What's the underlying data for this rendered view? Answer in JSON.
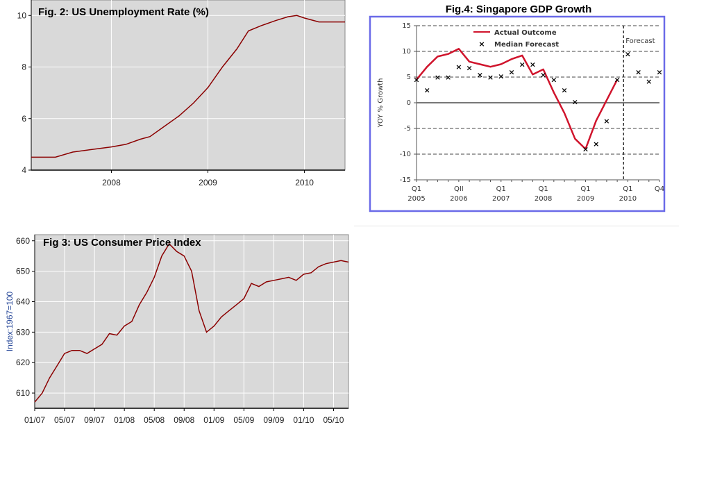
{
  "chart_data": [
    {
      "id": "unemployment",
      "type": "line",
      "title": "Fig. 2: US Unemployment Rate (%)",
      "xlabel": "",
      "ylabel": "",
      "x_tick_labels": [
        "2008",
        "2009",
        "2010"
      ],
      "y_tick_labels": [
        "4",
        "6",
        "8",
        "10"
      ],
      "xlim": [
        2007.17,
        2010.42
      ],
      "ylim": [
        4,
        10.6
      ],
      "grid": true,
      "colors": {
        "line": "#8b0000",
        "background": "#d9d9d9",
        "grid": "#ffffff"
      },
      "series": [
        {
          "x": [
            2007.17,
            2007.42,
            2007.6,
            2007.8,
            2008.0,
            2008.15,
            2008.3,
            2008.4,
            2008.55,
            2008.7,
            2008.85,
            2009.0,
            2009.15,
            2009.3,
            2009.42,
            2009.55,
            2009.7,
            2009.83,
            2009.92,
            2010.0,
            2010.15,
            2010.42
          ],
          "y": [
            4.5,
            4.5,
            4.7,
            4.8,
            4.9,
            5.0,
            5.2,
            5.3,
            5.7,
            6.1,
            6.6,
            7.2,
            8.0,
            8.7,
            9.4,
            9.6,
            9.8,
            9.95,
            10.0,
            9.9,
            9.75,
            9.75
          ]
        }
      ]
    },
    {
      "id": "cpi",
      "type": "line",
      "title": "Fig 3: US Consumer Price Index",
      "xlabel": "",
      "ylabel": "Index:1967=100",
      "x_categories": [
        "01/07",
        "05/07",
        "09/07",
        "01/08",
        "05/08",
        "09/08",
        "01/09",
        "05/09",
        "09/09",
        "01/10",
        "05/10"
      ],
      "y_tick_labels": [
        "610",
        "620",
        "630",
        "640",
        "650",
        "660"
      ],
      "xlim": [
        0,
        42
      ],
      "ylim": [
        605,
        662
      ],
      "grid": true,
      "colors": {
        "line": "#8b0000",
        "background": "#d9d9d9",
        "grid": "#ffffff"
      },
      "series": [
        {
          "x": [
            0,
            1,
            2,
            3,
            4,
            5,
            6,
            7,
            8,
            9,
            10,
            11,
            12,
            13,
            14,
            15,
            16,
            17,
            18,
            19,
            20,
            21,
            22,
            23,
            24,
            25,
            26,
            27,
            28,
            29,
            30,
            31,
            32,
            33,
            34,
            35,
            36,
            37,
            38,
            39,
            40,
            41,
            42
          ],
          "y": [
            607,
            610,
            615,
            619,
            623,
            624,
            624,
            623,
            624.5,
            626,
            629.5,
            629,
            632,
            633.5,
            639,
            643,
            648,
            655,
            659,
            656.5,
            655,
            650,
            637,
            630,
            632,
            635,
            637,
            639,
            641,
            646,
            645,
            646.5,
            647,
            647.5,
            648,
            647,
            649,
            649.5,
            651.5,
            652.5,
            653,
            653.5,
            653
          ]
        }
      ]
    },
    {
      "id": "singapore-gdp",
      "type": "line",
      "title": "Fig.4: Singapore GDP Growth",
      "xlabel": "",
      "ylabel": "YOY % Growth",
      "y_tick_labels": [
        "-15",
        "-10",
        "-5",
        "0",
        "5",
        "10",
        "15"
      ],
      "ylim": [
        -15,
        15
      ],
      "xlim": [
        2005.0,
        2010.75
      ],
      "x_quarter_labels": [
        "Q1",
        "QII",
        "Q1",
        "Q1",
        "Q1",
        "Q1",
        "Q4"
      ],
      "x_year_labels": [
        "2005",
        "2006",
        "2007",
        "2008",
        "2009",
        "2010"
      ],
      "forecast_label": "Forecast",
      "forecast_start": 2009.9,
      "legend": {
        "position": "top-left",
        "entries": [
          "Actual Outcome",
          "Median Forecast"
        ]
      },
      "grid": true,
      "colors": {
        "actual": "#d0142c",
        "forecast_marker": "#000000",
        "frame": "#6a6ae8"
      },
      "series": [
        {
          "name": "Actual Outcome",
          "x": [
            2005.0,
            2005.25,
            2005.5,
            2005.75,
            2006.0,
            2006.25,
            2006.5,
            2006.75,
            2007.0,
            2007.25,
            2007.5,
            2007.75,
            2008.0,
            2008.25,
            2008.5,
            2008.75,
            2009.0,
            2009.25,
            2009.5,
            2009.75
          ],
          "y": [
            4.5,
            7.0,
            9.0,
            9.5,
            10.5,
            8.0,
            7.5,
            7.0,
            7.5,
            8.5,
            9.2,
            5.5,
            6.5,
            2.0,
            -2.0,
            -7.0,
            -9.0,
            -3.5,
            0.5,
            4.5
          ]
        },
        {
          "name": "Median Forecast",
          "x": [
            2005.0,
            2005.25,
            2005.5,
            2005.75,
            2006.0,
            2006.25,
            2006.5,
            2006.75,
            2007.0,
            2007.25,
            2007.5,
            2007.75,
            2008.0,
            2008.25,
            2008.5,
            2008.75,
            2009.0,
            2009.25,
            2009.5,
            2009.75,
            2010.0,
            2010.25,
            2010.5,
            2010.75
          ],
          "y": [
            4.5,
            2.5,
            5.0,
            5.0,
            7.0,
            6.8,
            5.5,
            5.0,
            5.2,
            6.0,
            7.5,
            7.5,
            5.5,
            4.5,
            2.5,
            0.2,
            -9.0,
            -8.0,
            -3.5,
            4.5,
            9.5,
            6.0,
            4.2,
            6.0
          ]
        }
      ]
    }
  ]
}
